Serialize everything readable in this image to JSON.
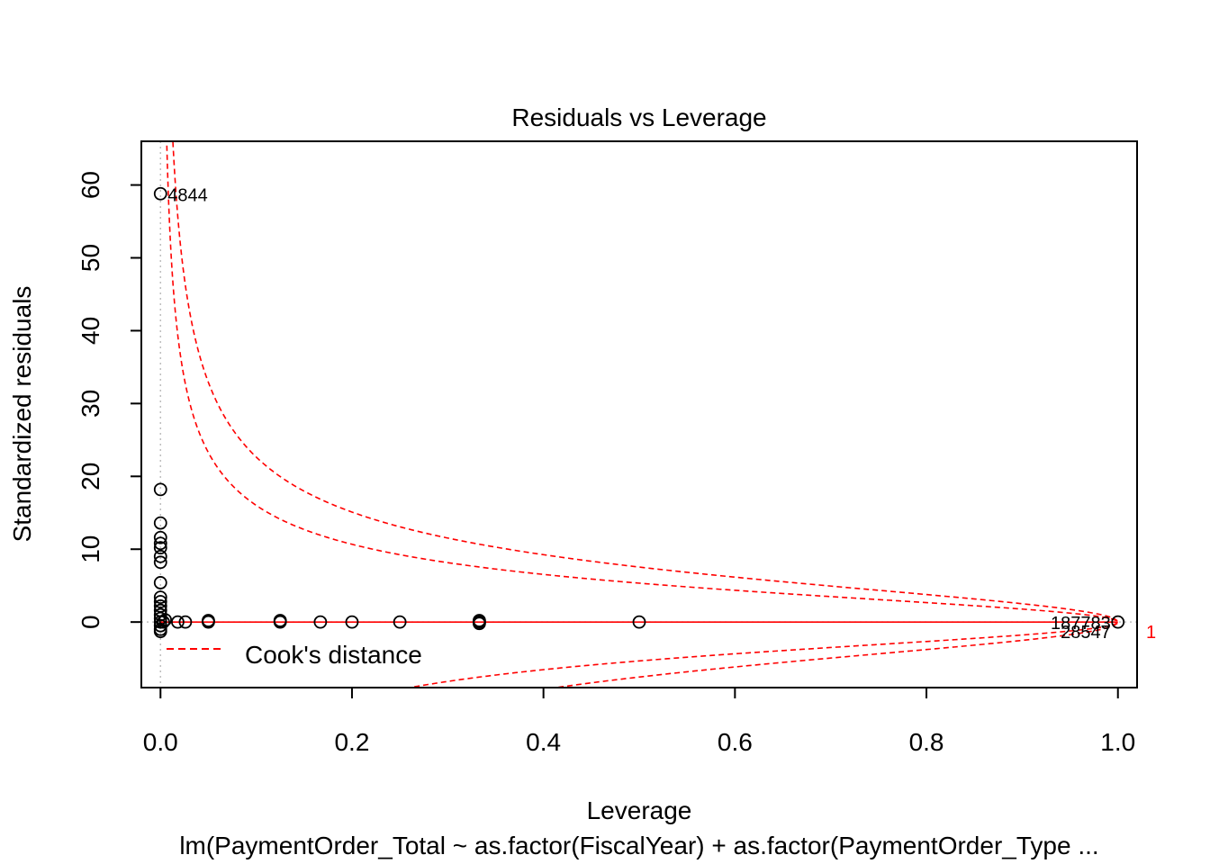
{
  "chart_data": {
    "type": "scatter",
    "title": "Residuals vs Leverage",
    "xlabel": "Leverage",
    "ylabel": "Standardized residuals",
    "subtitle": "lm(PaymentOrder_Total ~ as.factor(FiscalYear) + as.factor(PaymentOrder_Type ...",
    "xlim": [
      -0.02,
      1.02
    ],
    "ylim": [
      -9,
      66
    ],
    "x_ticks": [
      0.0,
      0.2,
      0.4,
      0.6,
      0.8,
      1.0
    ],
    "x_tick_labels": [
      "0.0",
      "0.2",
      "0.4",
      "0.6",
      "0.8",
      "1.0"
    ],
    "y_ticks": [
      0,
      10,
      20,
      30,
      40,
      50,
      60
    ],
    "y_tick_labels": [
      "0",
      "10",
      "20",
      "30",
      "40",
      "50",
      "60"
    ],
    "points": [
      [
        0.0,
        58.8
      ],
      [
        0.0,
        18.2
      ],
      [
        0.0,
        13.6
      ],
      [
        0.0,
        11.6
      ],
      [
        0.0,
        10.8
      ],
      [
        0.0,
        10.2
      ],
      [
        0.0,
        9.0
      ],
      [
        0.0,
        8.2
      ],
      [
        0.0,
        5.4
      ],
      [
        0.0,
        3.4
      ],
      [
        0.0,
        2.8
      ],
      [
        0.0,
        2.2
      ],
      [
        0.0,
        1.6
      ],
      [
        0.0,
        1.0
      ],
      [
        0.0,
        0.5
      ],
      [
        0.0,
        0.0
      ],
      [
        0.0,
        -0.5
      ],
      [
        0.0,
        -1.0
      ],
      [
        0.0,
        -1.3
      ],
      [
        0.003,
        0.0
      ],
      [
        0.005,
        0.3
      ],
      [
        0.018,
        0.0
      ],
      [
        0.026,
        0.0
      ],
      [
        0.05,
        0.0
      ],
      [
        0.05,
        0.2
      ],
      [
        0.125,
        0.0
      ],
      [
        0.125,
        0.2
      ],
      [
        0.167,
        0.0
      ],
      [
        0.2,
        0.0
      ],
      [
        0.25,
        0.0
      ],
      [
        0.333,
        0.0
      ],
      [
        0.333,
        0.2
      ],
      [
        0.333,
        -0.2
      ],
      [
        0.5,
        0.0
      ],
      [
        1.0,
        0.0
      ]
    ],
    "point_labels": [
      {
        "text": "4844",
        "x": 0.0,
        "y": 58.8
      },
      {
        "text": "187783",
        "x": 1.0,
        "y": 0.0
      },
      {
        "text": "28547",
        "x": 1.0,
        "y": -1.2
      }
    ],
    "reference_lines": {
      "h": 0,
      "v": 0
    },
    "cooks_distance_levels": [
      0.5,
      1
    ],
    "cooks_contour_label": "1",
    "n_params": 57,
    "legend": {
      "label": "Cook's distance",
      "position": "bottom-left"
    },
    "colors": {
      "points": "#000000",
      "cooks": "#ff0000",
      "reference": "#bebebe",
      "smooth": "#ff0000"
    }
  }
}
